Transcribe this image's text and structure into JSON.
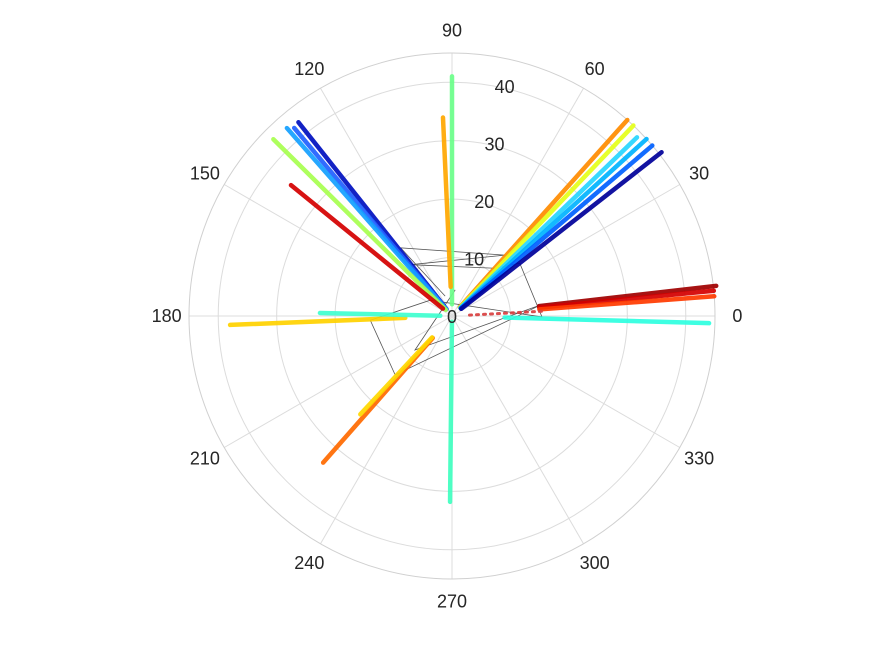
{
  "chart_data": {
    "type": "polar",
    "title": "",
    "theta_unit": "degrees",
    "rlim": [
      0,
      45
    ],
    "r_ticks": [
      0,
      10,
      20,
      30,
      40
    ],
    "theta_ticks": [
      0,
      30,
      60,
      90,
      120,
      150,
      180,
      210,
      240,
      270,
      300,
      330
    ],
    "grid": true,
    "colormap": "jet",
    "rays": [
      {
        "theta": 90.0,
        "r": [
          2,
          41
        ],
        "color": "#6cff8a"
      },
      {
        "theta": 92.6,
        "r": [
          5,
          34
        ],
        "color": "#ffa800"
      },
      {
        "theta": 48.2,
        "r": [
          2,
          45
        ],
        "color": "#ff8c00"
      },
      {
        "theta": 46.4,
        "r": [
          2,
          45
        ],
        "color": "#e6ff1a"
      },
      {
        "theta": 44.0,
        "r": [
          2,
          44
        ],
        "color": "#28d6ff"
      },
      {
        "theta": 42.3,
        "r": [
          2,
          45
        ],
        "color": "#00b4ff"
      },
      {
        "theta": 40.4,
        "r": [
          2,
          45
        ],
        "color": "#0060ff"
      },
      {
        "theta": 38.0,
        "r": [
          2,
          45.5
        ],
        "color": "#00009a"
      },
      {
        "theta": 6.5,
        "r": [
          15,
          45.5
        ],
        "color": "#a00000"
      },
      {
        "theta": 5.5,
        "r": [
          15,
          45
        ],
        "color": "#d40000"
      },
      {
        "theta": 4.3,
        "r": [
          15,
          45
        ],
        "color": "#ff3a00"
      },
      {
        "theta": 3.0,
        "r": [
          3,
          16
        ],
        "color": "#d84040",
        "dotted": true
      },
      {
        "theta": -1.6,
        "r": [
          9,
          44
        ],
        "color": "#2effe0"
      },
      {
        "theta": 128.4,
        "r": [
          1.5,
          42.3
        ],
        "color": "#0010c0"
      },
      {
        "theta": 130.0,
        "r": [
          1.5,
          42
        ],
        "color": "#2060ff"
      },
      {
        "theta": 131.3,
        "r": [
          1.5,
          42.8
        ],
        "color": "#14a0ff"
      },
      {
        "theta": 135.3,
        "r": [
          1.5,
          43
        ],
        "color": "#a8ff50"
      },
      {
        "theta": 140.9,
        "r": [
          2,
          35.5
        ],
        "color": "#d40000"
      },
      {
        "theta": 182.3,
        "r": [
          8,
          38
        ],
        "color": "#ffd200"
      },
      {
        "theta": 178.7,
        "r": [
          2,
          22.6
        ],
        "color": "#40ffd0"
      },
      {
        "theta": 228.7,
        "r": [
          5,
          33.4
        ],
        "color": "#ff6a00"
      },
      {
        "theta": 227.0,
        "r": [
          5,
          23
        ],
        "color": "#ffd800"
      },
      {
        "theta": 269.4,
        "r": [
          1,
          31.8
        ],
        "color": "#40ffc0"
      }
    ],
    "connector": {
      "color": "#555555",
      "points": [
        [
          109,
          3.6
        ],
        [
          127,
          14.6
        ],
        [
          49,
          13.8
        ],
        [
          129,
          11.3
        ],
        [
          48,
          11
        ],
        [
          38,
          14.7
        ],
        [
          -0.6,
          15.4
        ],
        [
          144,
          4.6
        ],
        [
          183,
          14
        ],
        [
          226,
          14
        ],
        [
          7,
          15.2
        ],
        [
          222.6,
          8.6
        ],
        [
          83,
          4.5
        ]
      ]
    }
  }
}
